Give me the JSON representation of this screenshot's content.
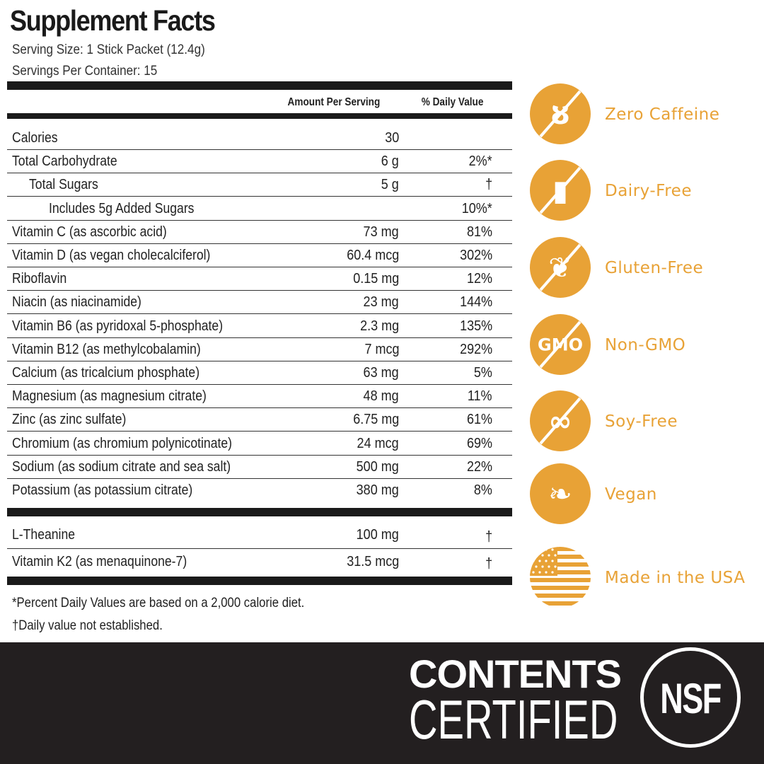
{
  "label": {
    "title": "Supplement Facts",
    "serving_size": "Serving Size: 1 Stick Packet (12.4g)",
    "servings_per_container": "Servings Per Container: 15",
    "col_amount": "Amount Per Serving",
    "col_dv": "% Daily Value",
    "rows": [
      {
        "name": "Calories",
        "amount": "30",
        "dv": "",
        "indent": 0
      },
      {
        "name": "Total Carbohydrate",
        "amount": "6 g",
        "dv": "2%*",
        "indent": 0
      },
      {
        "name": "Total Sugars",
        "amount": "5 g",
        "dv": "†",
        "indent": 1
      },
      {
        "name": "Includes 5g Added Sugars",
        "amount": "",
        "dv": "10%*",
        "indent": 2
      },
      {
        "name": "Vitamin C (as ascorbic acid)",
        "amount": "73 mg",
        "dv": "81%",
        "indent": 0
      },
      {
        "name": "Vitamin D (as  vegan cholecalciferol)",
        "amount": "60.4 mcg",
        "dv": "302%",
        "indent": 0
      },
      {
        "name": "Riboflavin",
        "amount": "0.15 mg",
        "dv": "12%",
        "indent": 0
      },
      {
        "name": "Niacin (as niacinamide)",
        "amount": "23 mg",
        "dv": "144%",
        "indent": 0
      },
      {
        "name": "Vitamin B6 (as pyridoxal 5-phosphate)",
        "amount": "2.3 mg",
        "dv": "135%",
        "indent": 0
      },
      {
        "name": "Vitamin B12 (as methylcobalamin)",
        "amount": "7 mcg",
        "dv": "292%",
        "indent": 0
      },
      {
        "name": "Calcium (as tricalcium phosphate)",
        "amount": "63 mg",
        "dv": "5%",
        "indent": 0
      },
      {
        "name": "Magnesium (as magnesium citrate)",
        "amount": "48 mg",
        "dv": "11%",
        "indent": 0
      },
      {
        "name": "Zinc (as zinc sulfate)",
        "amount": "6.75 mg",
        "dv": "61%",
        "indent": 0
      },
      {
        "name": "Chromium (as chromium polynicotinate)",
        "amount": "24 mcg",
        "dv": "69%",
        "indent": 0
      },
      {
        "name": "Sodium (as sodium citrate and sea salt)",
        "amount": "500 mg",
        "dv": "22%",
        "indent": 0
      },
      {
        "name": "Potassium (as potassium citrate)",
        "amount": "380 mg",
        "dv": "8%",
        "indent": 0
      }
    ],
    "other_rows": [
      {
        "name": "L-Theanine",
        "amount": "100 mg",
        "dv": "†"
      },
      {
        "name": "Vitamin K2 (as menaquinone-7)",
        "amount": "31.5 mcg",
        "dv": "†"
      }
    ],
    "footnote_1": "*Percent Daily Values are based on a 2,000 calorie diet.",
    "footnote_2": "†Daily value not established."
  },
  "badges": [
    {
      "label": "Zero Caffeine",
      "icon": "coffee-bean-crossed-icon",
      "glyph": "ȣ"
    },
    {
      "label": "Dairy-Free",
      "icon": "milk-bottle-crossed-icon",
      "glyph": "▮"
    },
    {
      "label": "Gluten-Free",
      "icon": "wheat-crossed-icon",
      "glyph": "❦"
    },
    {
      "label": "Non-GMO",
      "icon": "gmo-crossed-icon",
      "glyph": "GMO"
    },
    {
      "label": "Soy-Free",
      "icon": "soybean-crossed-icon",
      "glyph": "∞"
    },
    {
      "label": "Vegan",
      "icon": "leaf-icon",
      "glyph": "❧"
    },
    {
      "label": "Made in the USA",
      "icon": "us-flag-icon",
      "glyph": ""
    }
  ],
  "accent_color": "#e8a236",
  "certification": {
    "line1": "CONTENTS",
    "line2": "CERTIFIED",
    "logo_text": "NSF"
  }
}
